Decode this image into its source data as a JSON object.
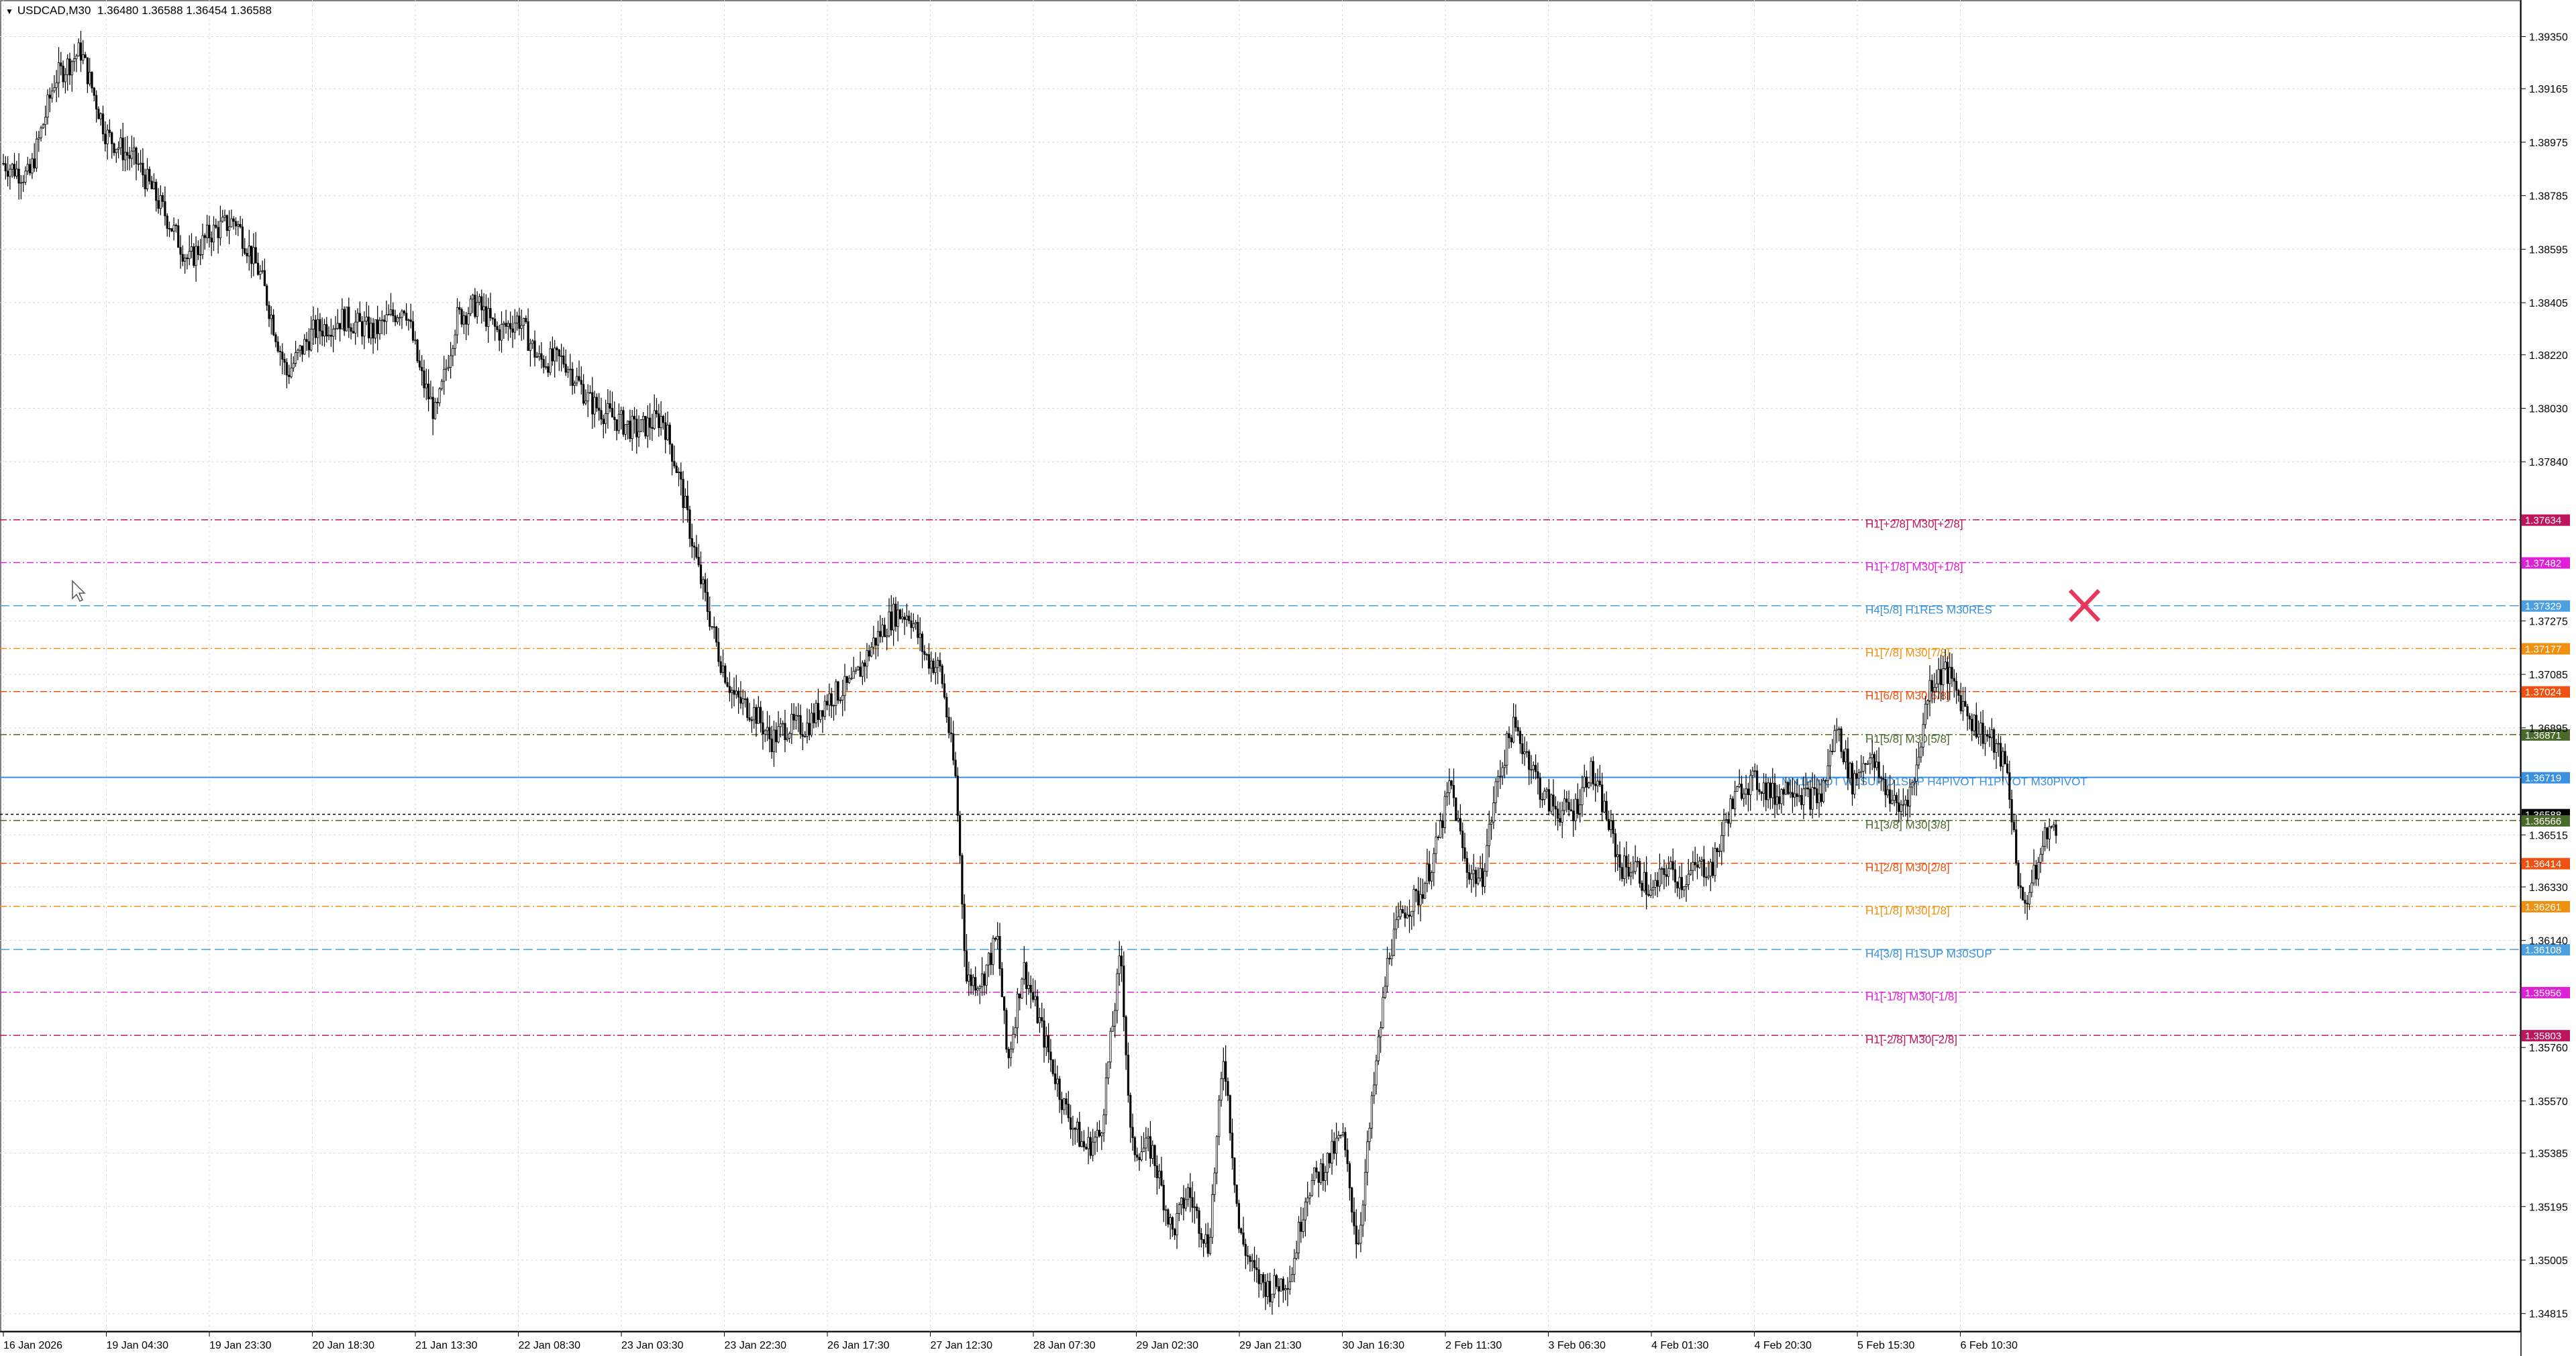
{
  "header": {
    "symbol": "USDCAD,M30",
    "ohlc": "1.36480 1.36588 1.36454 1.36588"
  },
  "colors": {
    "background": "#ffffff",
    "grid": "#d8d8d8",
    "candles": "#000000",
    "cursor_x": "#e8375a"
  },
  "chart_data": {
    "type": "candlestick",
    "symbol": "USDCAD",
    "timeframe": "M30",
    "y_ticks": [
      "1.39350",
      "1.39165",
      "1.38975",
      "1.38785",
      "1.38595",
      "1.38405",
      "1.38220",
      "1.38030",
      "1.37840",
      "1.37275",
      "1.37085",
      "1.36895",
      "1.36515",
      "1.36330",
      "1.36140",
      "1.35760",
      "1.35570",
      "1.35385",
      "1.35195",
      "1.35005",
      "1.34815"
    ],
    "ylim": [
      1.3475,
      1.3948
    ],
    "x_ticks": [
      "16 Jan 2026",
      "19 Jan 04:30",
      "19 Jan 23:30",
      "20 Jan 18:30",
      "21 Jan 13:30",
      "22 Jan 08:30",
      "23 Jan 03:30",
      "23 Jan 22:30",
      "26 Jan 17:30",
      "27 Jan 12:30",
      "28 Jan 07:30",
      "29 Jan 02:30",
      "29 Jan 21:30",
      "30 Jan 16:30",
      "2 Feb 11:30",
      "3 Feb 06:30",
      "4 Feb 01:30",
      "4 Feb 20:30",
      "5 Feb 15:30",
      "6 Feb 10:30"
    ],
    "price_path": [
      [
        0,
        1.389
      ],
      [
        0.5,
        1.3885
      ],
      [
        1,
        1.392
      ],
      [
        1.5,
        1.393
      ],
      [
        2,
        1.39
      ],
      [
        2.6,
        1.389
      ],
      [
        3.2,
        1.387
      ],
      [
        3.6,
        1.3855
      ],
      [
        4.0,
        1.3865
      ],
      [
        4.5,
        1.387
      ],
      [
        5,
        1.385
      ],
      [
        5.5,
        1.3815
      ],
      [
        6,
        1.383
      ],
      [
        6.6,
        1.3835
      ],
      [
        7.2,
        1.383
      ],
      [
        7.8,
        1.384
      ],
      [
        8.1,
        1.3815
      ],
      [
        8.4,
        1.38
      ],
      [
        8.8,
        1.3835
      ],
      [
        9.2,
        1.384
      ],
      [
        9.6,
        1.383
      ],
      [
        10,
        1.3835
      ],
      [
        10.4,
        1.382
      ],
      [
        10.9,
        1.382
      ],
      [
        11.4,
        1.3805
      ],
      [
        11.8,
        1.38
      ],
      [
        12.3,
        1.3795
      ],
      [
        12.8,
        1.38
      ],
      [
        13.1,
        1.378
      ],
      [
        13.5,
        1.3745
      ],
      [
        13.9,
        1.3715
      ],
      [
        14.2,
        1.37
      ],
      [
        14.6,
        1.3695
      ],
      [
        14.9,
        1.3685
      ],
      [
        15.2,
        1.369
      ],
      [
        15.6,
        1.369
      ],
      [
        16,
        1.37
      ],
      [
        16.5,
        1.3705
      ],
      [
        16.9,
        1.372
      ],
      [
        17.3,
        1.373
      ],
      [
        17.6,
        1.373
      ],
      [
        17.9,
        1.3715
      ],
      [
        18.2,
        1.371
      ],
      [
        18.5,
        1.367
      ],
      [
        18.7,
        1.36
      ],
      [
        19,
        1.36
      ],
      [
        19.3,
        1.3615
      ],
      [
        19.5,
        1.357
      ],
      [
        19.8,
        1.3605
      ],
      [
        20.2,
        1.358
      ],
      [
        20.6,
        1.3555
      ],
      [
        21,
        1.354
      ],
      [
        21.3,
        1.3545
      ],
      [
        21.7,
        1.361
      ],
      [
        21.9,
        1.354
      ],
      [
        22.3,
        1.354
      ],
      [
        22.7,
        1.351
      ],
      [
        23,
        1.3525
      ],
      [
        23.4,
        1.3505
      ],
      [
        23.7,
        1.3575
      ],
      [
        24,
        1.351
      ],
      [
        24.3,
        1.3495
      ],
      [
        24.6,
        1.349
      ],
      [
        25,
        1.3495
      ],
      [
        25.3,
        1.3525
      ],
      [
        25.7,
        1.3535
      ],
      [
        26,
        1.3545
      ],
      [
        26.3,
        1.3505
      ],
      [
        26.6,
        1.356
      ],
      [
        26.9,
        1.361
      ],
      [
        27.2,
        1.3625
      ],
      [
        27.5,
        1.363
      ],
      [
        27.8,
        1.3645
      ],
      [
        28.1,
        1.367
      ],
      [
        28.4,
        1.364
      ],
      [
        28.7,
        1.3635
      ],
      [
        29,
        1.367
      ],
      [
        29.3,
        1.369
      ],
      [
        29.6,
        1.368
      ],
      [
        29.9,
        1.3665
      ],
      [
        30.2,
        1.366
      ],
      [
        30.5,
        1.366
      ],
      [
        30.8,
        1.3675
      ],
      [
        31.1,
        1.366
      ],
      [
        31.4,
        1.364
      ],
      [
        31.7,
        1.364
      ],
      [
        32,
        1.363
      ],
      [
        32.3,
        1.364
      ],
      [
        32.6,
        1.3635
      ],
      [
        32.9,
        1.364
      ],
      [
        33.2,
        1.364
      ],
      [
        33.5,
        1.366
      ],
      [
        33.8,
        1.367
      ],
      [
        34.1,
        1.367
      ],
      [
        34.4,
        1.3665
      ],
      [
        34.7,
        1.367
      ],
      [
        35,
        1.3665
      ],
      [
        35.3,
        1.3665
      ],
      [
        35.6,
        1.369
      ],
      [
        35.9,
        1.367
      ],
      [
        36.2,
        1.368
      ],
      [
        36.5,
        1.367
      ],
      [
        36.8,
        1.366
      ],
      [
        37.1,
        1.367
      ],
      [
        37.4,
        1.3705
      ],
      [
        37.7,
        1.371
      ],
      [
        38,
        1.37
      ],
      [
        38.3,
        1.369
      ],
      [
        38.6,
        1.3685
      ],
      [
        38.9,
        1.3675
      ],
      [
        39.2,
        1.3625
      ],
      [
        39.5,
        1.364
      ],
      [
        39.7,
        1.3655
      ],
      [
        39.9,
        1.365
      ]
    ],
    "levels": [
      {
        "label": "H1[+2/8] M30[+2/8]",
        "value": "1.37634",
        "v": 1.37634,
        "color": "#c0155c",
        "dash": "10,4,2,4",
        "label_color": "#c0155c"
      },
      {
        "label": "H1[+1/8] M30[+1/8]",
        "value": "1.37482",
        "v": 1.37482,
        "color": "#e020d8",
        "dash": "10,4,2,4",
        "label_color": "#e020d8"
      },
      {
        "label": "H4[5/8] H1RES M30RES",
        "value": "1.37329",
        "v": 1.37329,
        "color": "#4aa0e0",
        "dash": "14,6",
        "label_color": "#3a90d8"
      },
      {
        "label": "H1[7/8] M30[7/8]",
        "value": "1.37177",
        "v": 1.37177,
        "color": "#f09010",
        "dash": "10,4,2,4",
        "label_color": "#f09010"
      },
      {
        "label": "H1[6/8] M30[6/8]",
        "value": "1.37024",
        "v": 1.37024,
        "color": "#f05010",
        "dash": "10,4,2,4",
        "label_color": "#f05010"
      },
      {
        "label": "H1[5/8] M30[5/8]",
        "value": "1.36871",
        "v": 1.36871,
        "color": "#4a6a2a",
        "dash": "10,4,2,4",
        "label_color": "#4a6a2a"
      },
      {
        "label": "MN1PIVOT W1SUP D1SUP H4PIVOT H1PIVOT M30PIVOT",
        "value": "1.36719",
        "v": 1.36719,
        "color": "#3a90e0",
        "dash": "",
        "label_color": "#3a90e0"
      },
      {
        "label": "",
        "value": "1.36588",
        "v": 1.36588,
        "color": "#000000",
        "dash": "4,4",
        "label_color": "#000000"
      },
      {
        "label": "H1[3/8] M30[3/8]",
        "value": "1.36566",
        "v": 1.36566,
        "color": "#4a6a2a",
        "dash": "10,4,2,4",
        "label_color": "#4a6a2a"
      },
      {
        "label": "H1[2/8] M30[2/8]",
        "value": "1.36414",
        "v": 1.36414,
        "color": "#f05010",
        "dash": "10,4,2,4",
        "label_color": "#f05010"
      },
      {
        "label": "H1[1/8] M30[1/8]",
        "value": "1.36261",
        "v": 1.36261,
        "color": "#f09010",
        "dash": "10,4,2,4",
        "label_color": "#f09010"
      },
      {
        "label": "H4[3/8] H1SUP M30SUP",
        "value": "1.36108",
        "v": 1.36108,
        "color": "#4aa0e0",
        "dash": "14,6",
        "label_color": "#3a90d8"
      },
      {
        "label": "H1[-1/8] M30[-1/8]",
        "value": "1.35956",
        "v": 1.35956,
        "color": "#e020d8",
        "dash": "10,4,2,4",
        "label_color": "#e020d8"
      },
      {
        "label": "H1[-2/8] M30[-2/8]",
        "value": "1.35803",
        "v": 1.35803,
        "color": "#c0155c",
        "dash": "10,4,2,4",
        "label_color": "#c0155c"
      }
    ],
    "grid": true
  }
}
